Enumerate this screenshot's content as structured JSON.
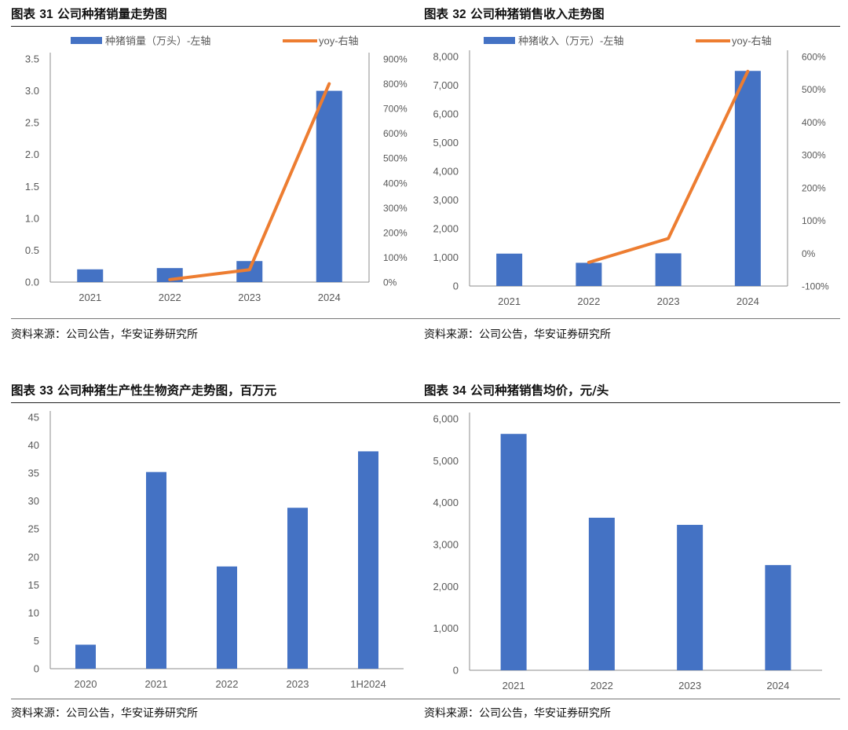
{
  "charts": [
    {
      "title_prefix": "图表",
      "title_num": "31",
      "title_text": "公司种猪销量走势图",
      "source": "资料来源：公司公告，华安证券研究所"
    },
    {
      "title_prefix": "图表",
      "title_num": "32",
      "title_text": "公司种猪销售收入走势图",
      "source": "资料来源：公司公告，华安证券研究所"
    },
    {
      "title_prefix": "图表",
      "title_num": "33",
      "title_text": "公司种猪生产性生物资产走势图，百万元",
      "source": "资料来源：公司公告，华安证券研究所"
    },
    {
      "title_prefix": "图表",
      "title_num": "34",
      "title_text": "公司种猪销售均价，元/头",
      "source": "资料来源：公司公告，华安证券研究所"
    }
  ],
  "colors": {
    "bar": "#4472C4",
    "line": "#ED7D31",
    "axis": "#8c8c8c",
    "text": "#595959"
  },
  "chart_data": [
    {
      "type": "bar+line",
      "categories": [
        "2021",
        "2022",
        "2023",
        "2024"
      ],
      "series": [
        {
          "name": "种猪销量（万头）-左轴",
          "kind": "bar",
          "axis": "left",
          "values": [
            0.2,
            0.22,
            0.33,
            3.0
          ]
        },
        {
          "name": "yoy-右轴",
          "kind": "line",
          "axis": "right",
          "values": [
            null,
            10,
            50,
            800
          ]
        }
      ],
      "ylim": [
        0,
        3.5
      ],
      "yticks": [
        "0.0",
        "0.5",
        "1.0",
        "1.5",
        "2.0",
        "2.5",
        "3.0",
        "3.5"
      ],
      "y2lim": [
        0,
        900
      ],
      "y2ticks": [
        "0%",
        "100%",
        "200%",
        "300%",
        "400%",
        "500%",
        "600%",
        "700%",
        "800%",
        "900%"
      ],
      "legend": "top"
    },
    {
      "type": "bar+line",
      "categories": [
        "2021",
        "2022",
        "2023",
        "2024"
      ],
      "series": [
        {
          "name": "种猪收入（万元）-左轴",
          "kind": "bar",
          "axis": "left",
          "values": [
            1130,
            810,
            1140,
            7500
          ]
        },
        {
          "name": "yoy-右轴",
          "kind": "line",
          "axis": "right",
          "values": [
            null,
            -28,
            45,
            555
          ]
        }
      ],
      "ylim": [
        0,
        8000
      ],
      "yticks": [
        "0",
        "1,000",
        "2,000",
        "3,000",
        "4,000",
        "5,000",
        "6,000",
        "7,000",
        "8,000"
      ],
      "y2lim": [
        -100,
        600
      ],
      "y2ticks": [
        "-100%",
        "0%",
        "100%",
        "200%",
        "300%",
        "400%",
        "500%",
        "600%"
      ],
      "legend": "top"
    },
    {
      "type": "bar",
      "categories": [
        "2020",
        "2021",
        "2022",
        "2023",
        "1H2024"
      ],
      "series": [
        {
          "kind": "bar",
          "axis": "left",
          "values": [
            4.3,
            35.2,
            18.3,
            28.8,
            38.9
          ]
        }
      ],
      "ylim": [
        0,
        45
      ],
      "yticks": [
        "0",
        "5",
        "10",
        "15",
        "20",
        "25",
        "30",
        "35",
        "40",
        "45"
      ]
    },
    {
      "type": "bar",
      "categories": [
        "2021",
        "2022",
        "2023",
        "2024"
      ],
      "series": [
        {
          "kind": "bar",
          "axis": "left",
          "values": [
            5640,
            3640,
            3470,
            2510
          ]
        }
      ],
      "ylim": [
        0,
        6000
      ],
      "yticks": [
        "0",
        "1,000",
        "2,000",
        "3,000",
        "4,000",
        "5,000",
        "6,000"
      ]
    }
  ]
}
